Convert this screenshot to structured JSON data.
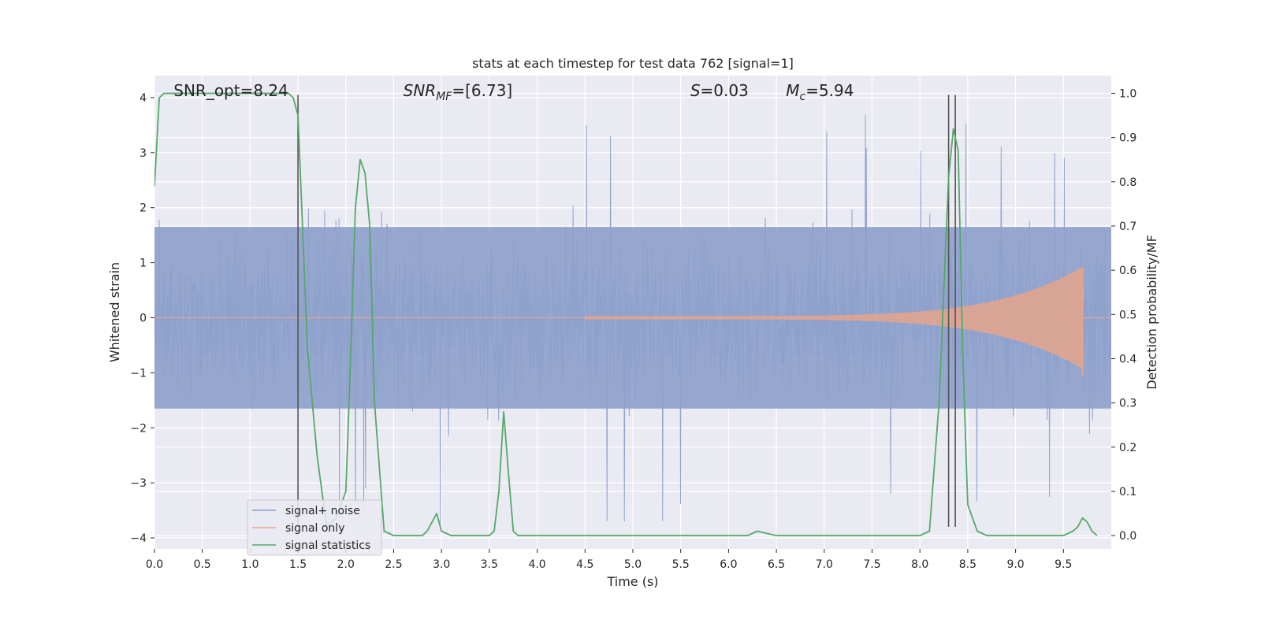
{
  "chart_data": {
    "type": "line",
    "title": "stats at each timestep for test data 762 [signal=1]",
    "xlabel": "Time (s)",
    "ylabel_left": "Whitened strain",
    "ylabel_right": "Detection probability/MF",
    "xlim": [
      0,
      10
    ],
    "ylim_left": [
      -4.2,
      4.4
    ],
    "ylim_right": [
      -0.03,
      1.04
    ],
    "grid": true,
    "x_ticks": [
      0.0,
      0.5,
      1.0,
      1.5,
      2.0,
      2.5,
      3.0,
      3.5,
      4.0,
      4.5,
      5.0,
      5.5,
      6.0,
      6.5,
      7.0,
      7.5,
      8.0,
      8.5,
      9.0,
      9.5
    ],
    "x_tick_labels": [
      "0.0",
      "0.5",
      "1.0",
      "1.5",
      "2.0",
      "2.5",
      "3.0",
      "3.5",
      "4.0",
      "4.5",
      "5.0",
      "5.5",
      "6.0",
      "6.5",
      "7.0",
      "7.5",
      "8.0",
      "8.5",
      "9.0",
      "9.5"
    ],
    "y_left_ticks": [
      4,
      3,
      2,
      1,
      0,
      -1,
      -2,
      -3,
      -4
    ],
    "y_left_tick_labels": [
      "4",
      "3",
      "2",
      "1",
      "0",
      "−1",
      "−2",
      "−3",
      "−4"
    ],
    "y_right_ticks": [
      1.0,
      0.9,
      0.8,
      0.7,
      0.6,
      0.5,
      0.4,
      0.3,
      0.2,
      0.1,
      0.0
    ],
    "y_right_tick_labels": [
      "1.0",
      "0.9",
      "0.8",
      "0.7",
      "0.6",
      "0.5",
      "0.4",
      "0.3",
      "0.2",
      "0.1",
      "0.0"
    ],
    "annotations": [
      {
        "text": "SNR_opt=8.24",
        "x": 0.2
      },
      {
        "text": "SNR_MF=[6.73]",
        "x": 2.6
      },
      {
        "text": "S=0.03",
        "x": 5.6
      },
      {
        "text": "M_c=5.94",
        "x": 6.6
      }
    ],
    "vertical_lines_x": [
      1.5,
      8.3,
      8.37
    ],
    "legend": {
      "placement": "lower-left",
      "entries": [
        "signal+ noise",
        "signal only",
        "signal statistics"
      ]
    },
    "series": [
      {
        "name": "signal+ noise",
        "axis": "left",
        "color": "#8da0cb",
        "style": "dense-noise",
        "typical_range": [
          -2.2,
          2.2
        ],
        "extreme_range": [
          -3.8,
          3.8
        ]
      },
      {
        "name": "signal only",
        "axis": "left",
        "color": "#e5a58c",
        "style": "chirp",
        "start_x": 4.5,
        "end_x": 9.7,
        "peak_amplitude": 0.9
      },
      {
        "name": "signal statistics",
        "axis": "right",
        "color": "#55a868",
        "x": [
          0.0,
          0.05,
          0.1,
          0.2,
          0.3,
          0.5,
          0.8,
          1.0,
          1.2,
          1.4,
          1.45,
          1.5,
          1.6,
          1.7,
          1.8,
          1.9,
          2.0,
          2.05,
          2.1,
          2.15,
          2.2,
          2.25,
          2.3,
          2.4,
          2.5,
          2.6,
          2.7,
          2.8,
          2.85,
          2.95,
          3.0,
          3.1,
          3.3,
          3.5,
          3.55,
          3.6,
          3.65,
          3.7,
          3.75,
          3.8,
          3.9,
          4.1,
          5.0,
          5.5,
          5.8,
          6.2,
          6.3,
          6.5,
          7.0,
          7.5,
          8.0,
          8.1,
          8.2,
          8.3,
          8.35,
          8.4,
          8.45,
          8.5,
          8.6,
          8.7,
          8.8,
          9.0,
          9.5,
          9.6,
          9.65,
          9.7,
          9.75,
          9.8,
          9.85
        ],
        "y": [
          0.79,
          0.99,
          1.0,
          1.0,
          1.0,
          1.0,
          1.0,
          1.0,
          1.0,
          1.0,
          0.99,
          0.95,
          0.42,
          0.18,
          0.02,
          0.04,
          0.1,
          0.4,
          0.74,
          0.85,
          0.82,
          0.7,
          0.3,
          0.01,
          0.0,
          0.0,
          0.0,
          0.0,
          0.01,
          0.05,
          0.01,
          0.0,
          0.0,
          0.0,
          0.01,
          0.1,
          0.28,
          0.14,
          0.01,
          0.0,
          0.0,
          0.0,
          0.0,
          0.0,
          0.0,
          0.0,
          0.01,
          0.0,
          0.0,
          0.0,
          0.0,
          0.01,
          0.3,
          0.81,
          0.92,
          0.87,
          0.4,
          0.07,
          0.01,
          0.0,
          0.0,
          0.0,
          0.0,
          0.01,
          0.02,
          0.04,
          0.03,
          0.01,
          0.0
        ]
      }
    ]
  }
}
